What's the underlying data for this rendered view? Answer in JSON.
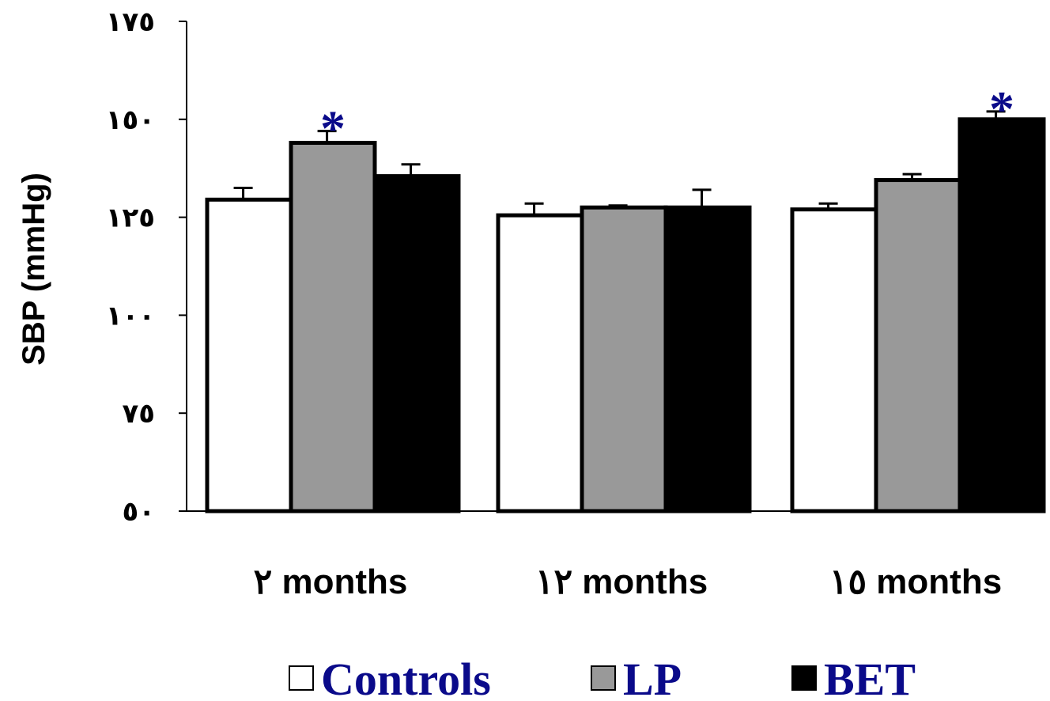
{
  "chart_data": {
    "type": "bar",
    "ylabel": "SBP (mmHg)",
    "ylim": [
      50,
      175
    ],
    "yticks": [
      50,
      75,
      100,
      125,
      150,
      175
    ],
    "ytick_labels": [
      "٥٠",
      "٧٥",
      "١٠٠",
      "١٢٥",
      "١٥٠",
      "١٧٥"
    ],
    "categories": [
      "٢ months",
      "١٢ months",
      "١٥ months"
    ],
    "series": [
      {
        "name": "Controls",
        "color": "#ffffff",
        "values": [
          129.5,
          125.5,
          127
        ],
        "errors": [
          3,
          3,
          1.5
        ]
      },
      {
        "name": "LP",
        "color": "#999999",
        "values": [
          144,
          127.5,
          134.5
        ],
        "errors": [
          3,
          0.5,
          1.5
        ]
      },
      {
        "name": "BET",
        "color": "#000000",
        "values": [
          135.5,
          127.5,
          150
        ],
        "errors": [
          3,
          4.5,
          2
        ]
      }
    ],
    "annotations": [
      {
        "text": "*",
        "category": 0,
        "series": 1
      },
      {
        "text": "*",
        "category": 2,
        "series": 2
      }
    ],
    "grid": false,
    "legend_position": "bottom"
  }
}
